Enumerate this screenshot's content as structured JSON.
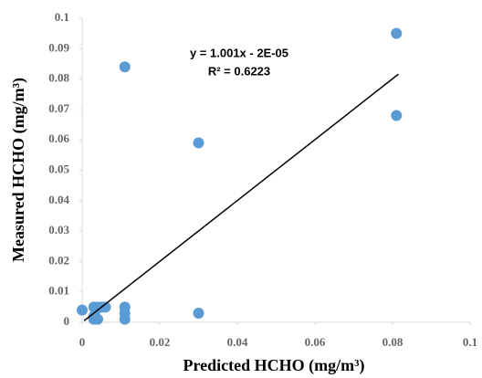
{
  "chart_data": {
    "type": "scatter",
    "x_label": "Predicted HCHO (mg/m³)",
    "y_label": "Measured HCHO (mg/m³)",
    "annotations": [
      "y = 1.001x - 2E-05",
      "R² = 0.6223"
    ],
    "series": [
      {
        "color": "#5b9bd5",
        "x": [
          0.081,
          0.081,
          0.011,
          0.03,
          0.03,
          0.011,
          0.011,
          0.011,
          0.006,
          0.005,
          0.004,
          0.003,
          0.0035,
          0.003,
          0.003,
          0.004,
          0
        ],
        "values": [
          0.095,
          0.068,
          0.084,
          0.059,
          0.003,
          0.005,
          0.003,
          0.001,
          0.005,
          0.005,
          0.005,
          0.005,
          0.004,
          0.002,
          0.001,
          0.001,
          0.004
        ]
      }
    ],
    "trendline": {
      "color": "#000000",
      "x": [
        0.0005,
        0.0815
      ],
      "values": [
        0.0005,
        0.0816
      ]
    },
    "xlim": [
      0,
      0.1
    ],
    "xticks": [
      0,
      0.02,
      0.04,
      0.06,
      0.08,
      0.1
    ],
    "ylim": [
      0,
      0.1
    ],
    "yticks": [
      0,
      0.01,
      0.02,
      0.03,
      0.04,
      0.05,
      0.06,
      0.07,
      0.08,
      0.09,
      0.1
    ]
  }
}
